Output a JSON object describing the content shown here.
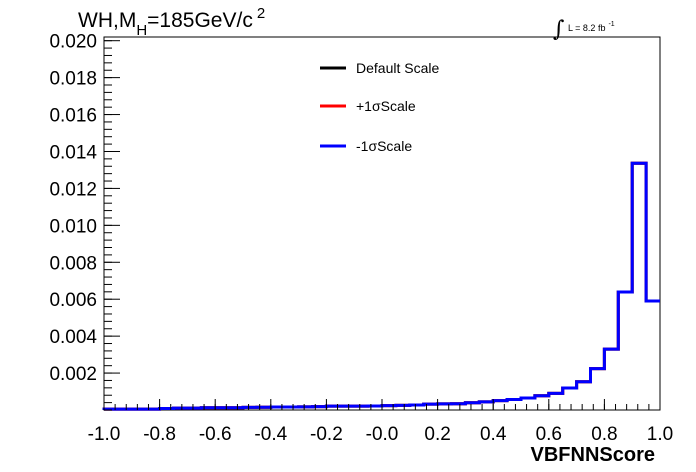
{
  "chart_data": {
    "type": "histogram",
    "title_main": "WH,M",
    "title_sub": "H",
    "title_rest": "=185GeV/c",
    "title_sup": "2",
    "lumi_integral": "∫",
    "lumi_text": "L = 8.2 fb",
    "lumi_sup": "-1",
    "xlabel": "VBFNNScore",
    "ylabel": "",
    "xlim": [
      -1.0,
      1.0
    ],
    "ylim": [
      0,
      0.0202
    ],
    "x_ticks": [
      "-1.0",
      "-0.8",
      "-0.6",
      "-0.4",
      "-0.2",
      "-0.0",
      "0.2",
      "0.4",
      "0.6",
      "0.8",
      "1.0"
    ],
    "x_tick_values": [
      -1.0,
      -0.8,
      -0.6,
      -0.4,
      -0.2,
      0.0,
      0.2,
      0.4,
      0.6,
      0.8,
      1.0
    ],
    "y_ticks": [
      "0.002",
      "0.004",
      "0.006",
      "0.008",
      "0.010",
      "0.012",
      "0.014",
      "0.016",
      "0.018",
      "0.020"
    ],
    "y_tick_values": [
      0.002,
      0.004,
      0.006,
      0.008,
      0.01,
      0.012,
      0.014,
      0.016,
      0.018,
      0.02
    ],
    "bin_edges": [
      -1.0,
      -0.95,
      -0.9,
      -0.85,
      -0.8,
      -0.75,
      -0.7,
      -0.65,
      -0.6,
      -0.55,
      -0.5,
      -0.45,
      -0.4,
      -0.35,
      -0.3,
      -0.25,
      -0.2,
      -0.15,
      -0.1,
      -0.05,
      0.0,
      0.05,
      0.1,
      0.15,
      0.2,
      0.25,
      0.3,
      0.35,
      0.4,
      0.45,
      0.5,
      0.55,
      0.6,
      0.65,
      0.7,
      0.75,
      0.8,
      0.85,
      0.9,
      0.95,
      1.0
    ],
    "legend_position": "top-center",
    "series": [
      {
        "name": "Default Scale",
        "color": "#000000",
        "values": [
          5e-05,
          5e-05,
          5e-05,
          5e-05,
          8e-05,
          0.0001,
          0.0001,
          0.00012,
          0.00012,
          0.00012,
          0.00014,
          0.00015,
          0.00016,
          0.00016,
          0.00017,
          0.00018,
          0.00021,
          0.00021,
          0.00021,
          0.00022,
          0.00024,
          0.00025,
          0.00027,
          0.00032,
          0.00033,
          0.00034,
          0.00039,
          0.00044,
          0.00051,
          0.00057,
          0.00065,
          0.00077,
          0.0009,
          0.00119,
          0.00153,
          0.00224,
          0.0033,
          0.00639,
          0.01336,
          0.0059
        ]
      },
      {
        "name": "+1σScale",
        "color": "#ff0000",
        "values": [
          5e-05,
          5e-05,
          5e-05,
          5e-05,
          8e-05,
          0.0001,
          0.0001,
          0.00012,
          0.00012,
          0.00012,
          0.00014,
          0.00015,
          0.00016,
          0.00016,
          0.00017,
          0.00018,
          0.00021,
          0.00021,
          0.00021,
          0.00022,
          0.00024,
          0.00025,
          0.00027,
          0.00032,
          0.00033,
          0.00034,
          0.00039,
          0.00044,
          0.00051,
          0.00057,
          0.00065,
          0.00077,
          0.0009,
          0.00119,
          0.00153,
          0.00224,
          0.0033,
          0.00639,
          0.01336,
          0.0059
        ]
      },
      {
        "name": "-1σScale",
        "color": "#0000ff",
        "values": [
          5e-05,
          5e-05,
          5e-05,
          5e-05,
          8e-05,
          0.0001,
          0.0001,
          0.00012,
          0.00012,
          0.00012,
          0.00014,
          0.00015,
          0.00016,
          0.00016,
          0.00017,
          0.00018,
          0.00021,
          0.00021,
          0.00021,
          0.00022,
          0.00024,
          0.00025,
          0.00027,
          0.00032,
          0.00033,
          0.00034,
          0.00039,
          0.00044,
          0.00051,
          0.00057,
          0.00065,
          0.00077,
          0.0009,
          0.00119,
          0.00153,
          0.00224,
          0.0033,
          0.00639,
          0.01336,
          0.0059
        ]
      }
    ]
  }
}
